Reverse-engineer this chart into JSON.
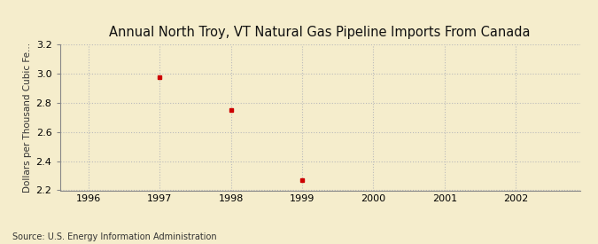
{
  "title": "Annual North Troy, VT Natural Gas Pipeline Imports From Canada",
  "ylabel": "Dollars per Thousand Cubic Fe...",
  "xlabel": "",
  "background_color": "#F5EDCC",
  "plot_bg_color": "#F5EDCC",
  "data_x": [
    1997,
    1998,
    1999
  ],
  "data_y": [
    2.97,
    2.75,
    2.27
  ],
  "marker_color": "#CC0000",
  "marker_style": "s",
  "marker_size": 3,
  "xlim": [
    1995.6,
    2002.9
  ],
  "ylim": [
    2.2,
    3.2
  ],
  "xticks": [
    1996,
    1997,
    1998,
    1999,
    2000,
    2001,
    2002
  ],
  "yticks": [
    2.2,
    2.4,
    2.6,
    2.8,
    3.0,
    3.2
  ],
  "grid_color": "#BBBBBB",
  "grid_linestyle": ":",
  "title_fontsize": 10.5,
  "label_fontsize": 7.5,
  "tick_fontsize": 8,
  "source_text": "Source: U.S. Energy Information Administration",
  "source_fontsize": 7
}
